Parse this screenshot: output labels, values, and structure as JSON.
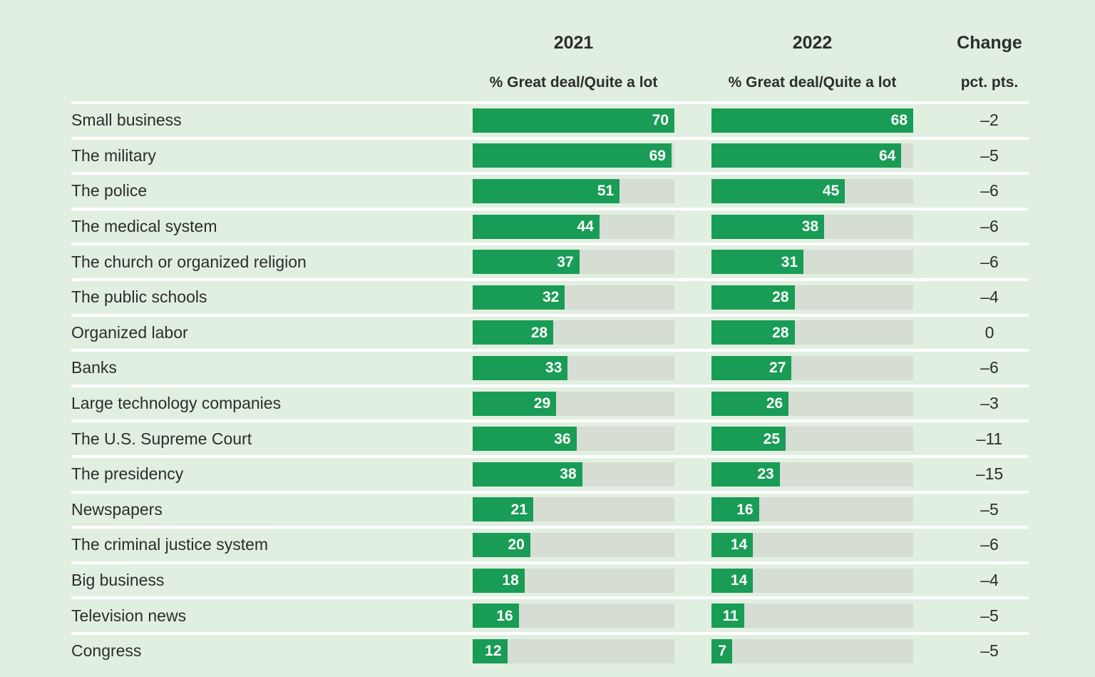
{
  "colors": {
    "background": "#e1efe0",
    "bar_green": "#199c55",
    "bar_track": "#d6ddd2",
    "row_separator": "#ffffff",
    "text_dark": "#2d2d2d",
    "bar_value_text": "#ffffff"
  },
  "table": {
    "header": {
      "col2021": {
        "year": "2021",
        "subtitle": "% Great deal/Quite a lot"
      },
      "col2022": {
        "year": "2022",
        "subtitle": "% Great deal/Quite a lot"
      },
      "change": {
        "title": "Change",
        "subtitle": "pct. pts."
      }
    },
    "rows": [
      {
        "label": "Small business",
        "v2021": 70,
        "v2022": 68,
        "change": "–2"
      },
      {
        "label": "The military",
        "v2021": 69,
        "v2022": 64,
        "change": "–5"
      },
      {
        "label": "The police",
        "v2021": 51,
        "v2022": 45,
        "change": "–6"
      },
      {
        "label": "The medical system",
        "v2021": 44,
        "v2022": 38,
        "change": "–6"
      },
      {
        "label": "The church or organized religion",
        "v2021": 37,
        "v2022": 31,
        "change": "–6"
      },
      {
        "label": "The public schools",
        "v2021": 32,
        "v2022": 28,
        "change": "–4"
      },
      {
        "label": "Organized labor",
        "v2021": 28,
        "v2022": 28,
        "change": "0"
      },
      {
        "label": "Banks",
        "v2021": 33,
        "v2022": 27,
        "change": "–6"
      },
      {
        "label": "Large technology companies",
        "v2021": 29,
        "v2022": 26,
        "change": "–3"
      },
      {
        "label": "The U.S. Supreme Court",
        "v2021": 36,
        "v2022": 25,
        "change": "–11"
      },
      {
        "label": "The presidency",
        "v2021": 38,
        "v2022": 23,
        "change": "–15"
      },
      {
        "label": "Newspapers",
        "v2021": 21,
        "v2022": 16,
        "change": "–5"
      },
      {
        "label": "The criminal justice system",
        "v2021": 20,
        "v2022": 14,
        "change": "–6"
      },
      {
        "label": "Big business",
        "v2021": 18,
        "v2022": 14,
        "change": "–4"
      },
      {
        "label": "Television news",
        "v2021": 16,
        "v2022": 11,
        "change": "–5"
      },
      {
        "label": "Congress",
        "v2021": 12,
        "v2022": 7,
        "change": "–5"
      }
    ]
  },
  "chart_data": {
    "type": "bar",
    "orientation": "horizontal",
    "categories": [
      "Small business",
      "The military",
      "The police",
      "The medical system",
      "The church or organized religion",
      "The public schools",
      "Organized labor",
      "Banks",
      "Large technology companies",
      "The U.S. Supreme Court",
      "The presidency",
      "Newspapers",
      "The criminal justice system",
      "Big business",
      "Television news",
      "Congress"
    ],
    "series": [
      {
        "name": "2021 % Great deal/Quite a lot",
        "values": [
          70,
          69,
          51,
          44,
          37,
          32,
          28,
          33,
          29,
          36,
          38,
          21,
          20,
          18,
          16,
          12
        ]
      },
      {
        "name": "2022 % Great deal/Quite a lot",
        "values": [
          68,
          64,
          45,
          38,
          31,
          28,
          28,
          27,
          26,
          25,
          23,
          16,
          14,
          14,
          11,
          7
        ]
      },
      {
        "name": "Change pct. pts.",
        "values": [
          -2,
          -5,
          -6,
          -6,
          -6,
          -4,
          0,
          -6,
          -3,
          -11,
          -15,
          -5,
          -6,
          -4,
          -5,
          -5
        ]
      }
    ],
    "value_labels": "inside-end-white",
    "bar_scale": "each year column scaled to its own maximum (2021 max 70, 2022 max 68)",
    "grid": false,
    "legend_position": "column-headers-top"
  }
}
